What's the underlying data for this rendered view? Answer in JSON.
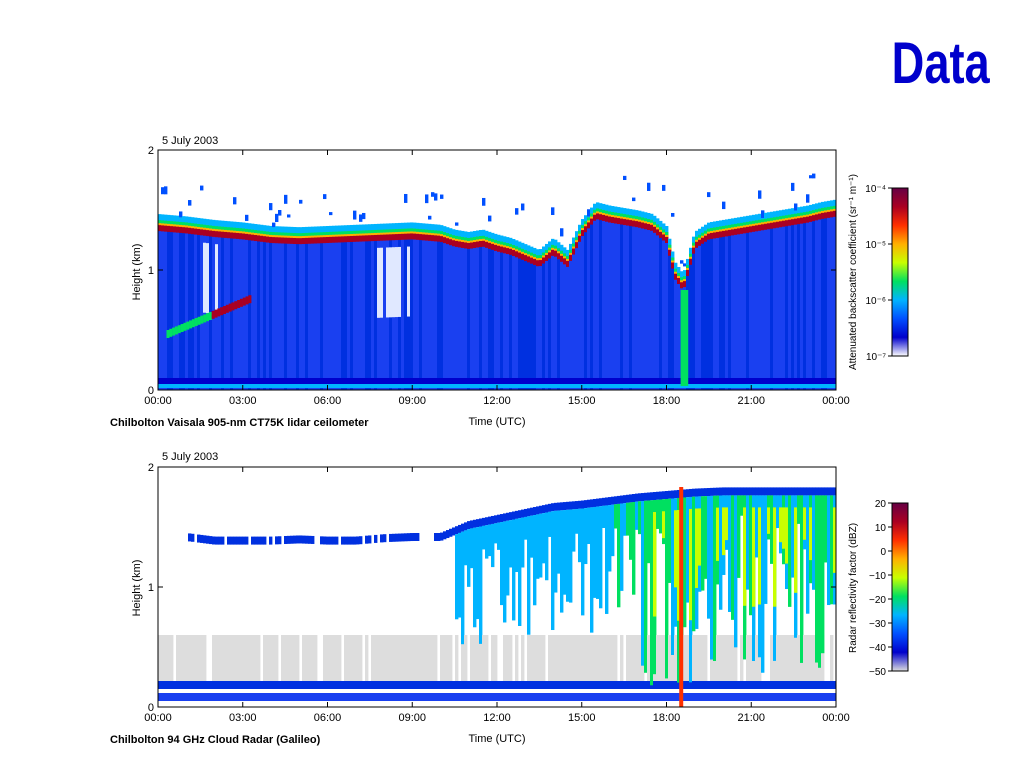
{
  "slide": {
    "title": "Data"
  },
  "chart_data": [
    {
      "type": "heatmap",
      "date_label": "5 July 2003",
      "caption": "Chilbolton Vaisala 905-nm CT75K lidar ceilometer",
      "xlabel": "Time (UTC)",
      "ylabel": "Height (km)",
      "x_ticks": [
        "00:00",
        "03:00",
        "06:00",
        "09:00",
        "12:00",
        "15:00",
        "18:00",
        "21:00",
        "00:00"
      ],
      "y_ticks": [
        "0",
        "1",
        "2"
      ],
      "xlim_hours": [
        0,
        24
      ],
      "ylim_km": [
        0,
        2
      ],
      "colorbar": {
        "label": "Attenuated backscatter coefficient (sr⁻¹ m⁻¹)",
        "scale": "log",
        "tick_labels": [
          "10⁻⁴",
          "10⁻⁵",
          "10⁻⁶",
          "10⁻⁷"
        ],
        "colors": [
          "#ffffff",
          "#0000cc",
          "#0050ff",
          "#00b4ff",
          "#00e060",
          "#c8ff00",
          "#ffb000",
          "#ff3000",
          "#aa0022",
          "#660044"
        ]
      },
      "series": [
        {
          "name": "Cloud base",
          "x": [
            0,
            1,
            2,
            3,
            4,
            5,
            6,
            7,
            8,
            9,
            10,
            10.5,
            11,
            11.5,
            12,
            12.5,
            13,
            13.5,
            14,
            14.5,
            15,
            15.5,
            16,
            16.5,
            17,
            17.5,
            18,
            18.3,
            18.6,
            19,
            19.5,
            20,
            20.5,
            21,
            21.5,
            22,
            22.5,
            23,
            23.5,
            24
          ],
          "y": [
            1.35,
            1.33,
            1.3,
            1.28,
            1.25,
            1.24,
            1.25,
            1.26,
            1.27,
            1.28,
            1.26,
            1.22,
            1.2,
            1.22,
            1.18,
            1.15,
            1.1,
            1.05,
            1.15,
            1.05,
            1.3,
            1.45,
            1.42,
            1.4,
            1.38,
            1.35,
            1.25,
            0.95,
            0.85,
            1.2,
            1.28,
            1.3,
            1.32,
            1.34,
            1.36,
            1.38,
            1.4,
            1.42,
            1.45,
            1.47
          ]
        }
      ]
    },
    {
      "type": "heatmap",
      "date_label": "5 July 2003",
      "caption": "Chilbolton 94 GHz Cloud Radar (Galileo)",
      "xlabel": "Time (UTC)",
      "ylabel": "Height (km)",
      "x_ticks": [
        "00:00",
        "03:00",
        "06:00",
        "09:00",
        "12:00",
        "15:00",
        "18:00",
        "21:00",
        "00:00"
      ],
      "y_ticks": [
        "0",
        "1",
        "2"
      ],
      "xlim_hours": [
        0,
        24
      ],
      "ylim_km": [
        0,
        2
      ],
      "colorbar": {
        "label": "Radar reflectivity factor (dBZ)",
        "scale": "linear",
        "tick_labels": [
          "20",
          "10",
          "0",
          "−10",
          "−20",
          "−30",
          "−40",
          "−50"
        ],
        "colors": [
          "#dddddd",
          "#0000cc",
          "#0050ff",
          "#00b4ff",
          "#00e060",
          "#c8ff00",
          "#ffb000",
          "#ff3000",
          "#aa0022",
          "#660044"
        ]
      },
      "series": [
        {
          "name": "Cloud top",
          "x": [
            1,
            2,
            3,
            4,
            5,
            6,
            7,
            8,
            9,
            10,
            11,
            12,
            13,
            14,
            15,
            16,
            17,
            18,
            19,
            20,
            21,
            22,
            23,
            24
          ],
          "y": [
            1.45,
            1.42,
            1.42,
            1.42,
            1.43,
            1.42,
            1.42,
            1.44,
            1.45,
            1.45,
            1.55,
            1.6,
            1.65,
            1.7,
            1.72,
            1.75,
            1.78,
            1.8,
            1.82,
            1.83,
            1.83,
            1.83,
            1.83,
            1.83
          ]
        }
      ]
    }
  ]
}
